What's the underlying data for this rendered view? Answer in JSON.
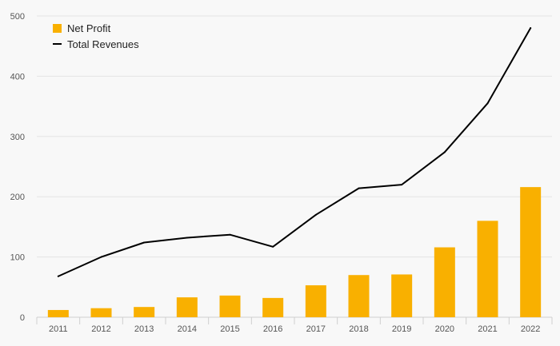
{
  "chart_data": {
    "type": "bar",
    "categories": [
      "2011",
      "2012",
      "2013",
      "2014",
      "2015",
      "2016",
      "2017",
      "2018",
      "2019",
      "2020",
      "2021",
      "2022"
    ],
    "series": [
      {
        "name": "Net Profit",
        "type": "bar",
        "color": "#f9b000",
        "values": [
          12,
          15,
          17,
          33,
          36,
          32,
          53,
          70,
          71,
          116,
          160,
          216
        ]
      },
      {
        "name": "Total Revenues",
        "type": "line",
        "color": "#000000",
        "values": [
          68,
          100,
          124,
          132,
          137,
          117,
          170,
          214,
          220,
          274,
          355,
          480
        ]
      }
    ],
    "ylim": [
      0,
      500
    ],
    "yticks": [
      "0",
      "100",
      "200",
      "300",
      "400",
      "500"
    ],
    "grid": true,
    "legend_position": "top-left"
  }
}
